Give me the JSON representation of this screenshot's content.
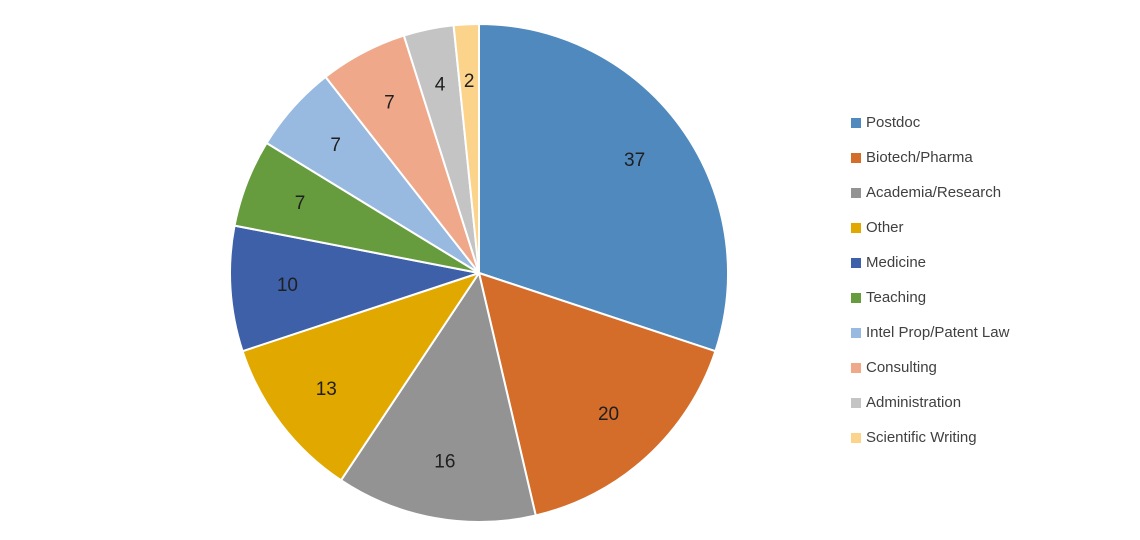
{
  "chart_data": {
    "type": "pie",
    "title": "",
    "categories": [
      "Postdoc",
      "Biotech/Pharma",
      "Academia/Research",
      "Other",
      "Medicine",
      "Teaching",
      "Intel Prop/Patent Law",
      "Consulting",
      "Administration",
      "Scientific Writing"
    ],
    "values": [
      37,
      20,
      16,
      13,
      10,
      7,
      7,
      7,
      4,
      2
    ],
    "data_labels": [
      "37",
      "20",
      "16",
      "13",
      "10",
      "7",
      "7",
      "7",
      "4",
      "2"
    ],
    "colors": [
      "#4f89bd",
      "#d46c2a",
      "#939393",
      "#e1a800",
      "#3e60a9",
      "#669c3d",
      "#98b9e0",
      "#efa88a",
      "#c4c4c4",
      "#fcd38a"
    ],
    "legend_position": "right",
    "start_angle": "12 o'clock",
    "direction": "clockwise"
  }
}
